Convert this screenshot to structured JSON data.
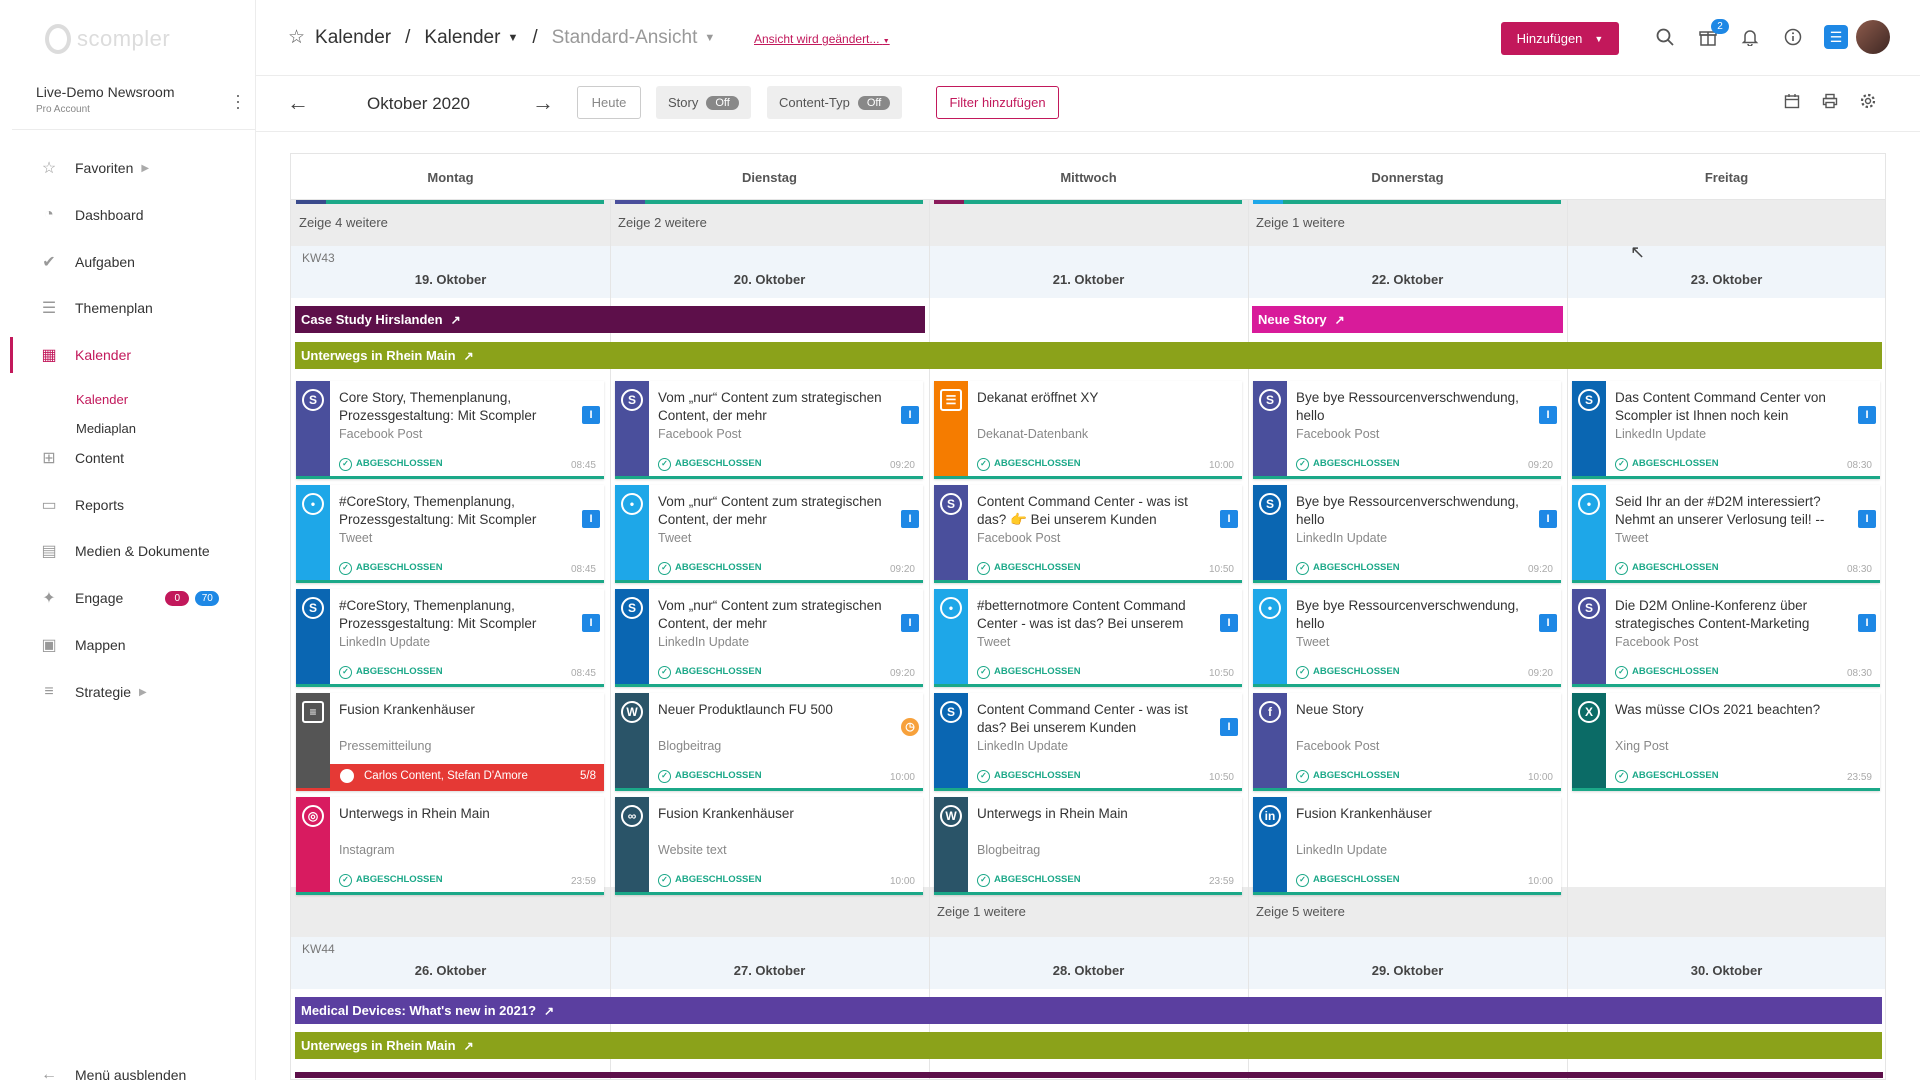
{
  "app": {
    "logo_text": "scompler"
  },
  "colors": {
    "accent": "#c2185b",
    "success": "#1ba888",
    "info": "#1e88e5"
  },
  "account": {
    "name": "Live-Demo Newsroom",
    "subtitle": "Pro Account"
  },
  "nav": {
    "items": [
      {
        "id": "favoriten",
        "label": "Favoriten",
        "icon": "star-icon",
        "has_chevron": true
      },
      {
        "id": "dashboard",
        "label": "Dashboard",
        "icon": "dashboard-icon"
      },
      {
        "id": "aufgaben",
        "label": "Aufgaben",
        "icon": "check-circle-icon"
      },
      {
        "id": "themenplan",
        "label": "Themenplan",
        "icon": "document-icon"
      },
      {
        "id": "kalender",
        "label": "Kalender",
        "icon": "calendar-icon",
        "active": true
      },
      {
        "id": "content",
        "label": "Content",
        "icon": "grid-icon"
      },
      {
        "id": "reports",
        "label": "Reports",
        "icon": "monitor-icon"
      },
      {
        "id": "medien",
        "label": "Medien & Dokumente",
        "icon": "archive-icon"
      },
      {
        "id": "engage",
        "label": "Engage",
        "icon": "network-icon",
        "badges": [
          "0",
          "70"
        ]
      },
      {
        "id": "mappen",
        "label": "Mappen",
        "icon": "briefcase-icon"
      },
      {
        "id": "strategie",
        "label": "Strategie",
        "icon": "sliders-icon",
        "has_chevron": true
      }
    ],
    "subitems": [
      {
        "label": "Kalender",
        "active": true
      },
      {
        "label": "Mediaplan"
      }
    ],
    "hide_menu": "Menü ausblenden"
  },
  "header": {
    "crumb1": "Kalender",
    "crumb2": "Kalender",
    "crumb3": "Standard-Ansicht",
    "sep": "/",
    "view_changed": "Ansicht wird geändert...",
    "add_button": "Hinzufügen",
    "notification_count": "2"
  },
  "controls": {
    "month": "Oktober 2020",
    "today": "Heute",
    "story_label": "Story",
    "story_value": "Off",
    "content_type_label": "Content-Typ",
    "content_type_value": "Off",
    "add_filter": "Filter hinzufügen"
  },
  "days": [
    "Montag",
    "Dienstag",
    "Mittwoch",
    "Donnerstag",
    "Freitag"
  ],
  "top_more": [
    "Zeige 4 weitere",
    "Zeige 2 weitere",
    "",
    "Zeige 1 weitere",
    ""
  ],
  "week43": {
    "kw": "KW43",
    "dates": [
      "19. Oktober",
      "20. Oktober",
      "21. Oktober",
      "22. Oktober",
      "23. Oktober"
    ],
    "bars": [
      {
        "label": "Case Study Hirslanden",
        "color": "#5d0f4a",
        "col": 0,
        "span": 2,
        "row": 0
      },
      {
        "label": "Neue Story",
        "color": "#d81b9a",
        "col": 3,
        "span": 1,
        "row": 0
      },
      {
        "label": "Unterwegs in Rhein Main",
        "color": "#8ba21a",
        "col": 0,
        "span": 5,
        "row": 1
      }
    ],
    "cards": [
      [
        {
          "title": "Core Story, Themenplanung, Prozessgestaltung: Mit Scompler",
          "type": "Facebook Post",
          "status": "ABGESCHLOSSEN",
          "time": "08:45",
          "color": "#4a4f9c",
          "icon": "scompler-icon",
          "flag": "I"
        },
        {
          "title": "#CoreStory, Themenplanung, Prozessgestaltung: Mit Scompler",
          "type": "Tweet",
          "status": "ABGESCHLOSSEN",
          "time": "08:45",
          "color": "#1ea7e8",
          "icon": "twitter-icon",
          "flag": "I"
        },
        {
          "title": "#CoreStory, Themenplanung, Prozessgestaltung: Mit Scompler",
          "type": "LinkedIn Update",
          "status": "ABGESCHLOSSEN",
          "time": "08:45",
          "color": "#0a66b2",
          "icon": "scompler-icon",
          "flag": "I"
        },
        {
          "title": "Fusion Krankenhäuser",
          "type": "Pressemitteilung",
          "status": "",
          "time": "",
          "color": "#555555",
          "icon": "newspaper-icon",
          "assign": "Carlos Content, Stefan D'Amore",
          "assign_count": "5/8"
        },
        {
          "title": "Unterwegs in Rhein Main",
          "type": "Instagram",
          "status": "ABGESCHLOSSEN",
          "time": "23:59",
          "color": "#d81b60",
          "icon": "instagram-icon"
        }
      ],
      [
        {
          "title": "Vom „nur“ Content zum strategischen Content, der mehr",
          "type": "Facebook Post",
          "status": "ABGESCHLOSSEN",
          "time": "09:20",
          "color": "#4a4f9c",
          "icon": "scompler-icon",
          "flag": "I"
        },
        {
          "title": "Vom „nur“ Content zum strategischen Content, der mehr",
          "type": "Tweet",
          "status": "ABGESCHLOSSEN",
          "time": "09:20",
          "color": "#1ea7e8",
          "icon": "twitter-icon",
          "flag": "I"
        },
        {
          "title": "Vom „nur“ Content zum strategischen Content, der mehr",
          "type": "LinkedIn Update",
          "status": "ABGESCHLOSSEN",
          "time": "09:20",
          "color": "#0a66b2",
          "icon": "scompler-icon",
          "flag": "I"
        },
        {
          "title": "Neuer Produktlaunch FU 500",
          "type": "Blogbeitrag",
          "status": "ABGESCHLOSSEN",
          "time": "10:00",
          "color": "#2a5468",
          "icon": "wordpress-icon",
          "flag": "clock"
        },
        {
          "title": "Fusion Krankenhäuser",
          "type": "Website text",
          "status": "ABGESCHLOSSEN",
          "time": "10:00",
          "color": "#2a5468",
          "icon": "link-icon"
        }
      ],
      [
        {
          "title": "Dekanat eröffnet XY",
          "type": "Dekanat-Datenbank",
          "status": "ABGESCHLOSSEN",
          "time": "10:00",
          "color": "#f57c00",
          "icon": "document-icon"
        },
        {
          "title": "Content Command Center - was ist das? 👉 Bei unserem Kunden",
          "type": "Facebook Post",
          "status": "ABGESCHLOSSEN",
          "time": "10:50",
          "color": "#4a4f9c",
          "icon": "scompler-icon",
          "flag": "I"
        },
        {
          "title": "#betternotmore Content Command Center - was ist das? Bei unserem",
          "type": "Tweet",
          "status": "ABGESCHLOSSEN",
          "time": "10:50",
          "color": "#1ea7e8",
          "icon": "twitter-icon",
          "flag": "I"
        },
        {
          "title": "Content Command Center - was ist das? Bei unserem Kunden",
          "type": "LinkedIn Update",
          "status": "ABGESCHLOSSEN",
          "time": "10:50",
          "color": "#0a66b2",
          "icon": "scompler-icon",
          "flag": "I"
        },
        {
          "title": "Unterwegs in Rhein Main",
          "type": "Blogbeitrag",
          "status": "ABGESCHLOSSEN",
          "time": "23:59",
          "color": "#2a5468",
          "icon": "wordpress-icon"
        }
      ],
      [
        {
          "title": "Bye bye Ressourcenverschwendung, hello",
          "type": "Facebook Post",
          "status": "ABGESCHLOSSEN",
          "time": "09:20",
          "color": "#4a4f9c",
          "icon": "scompler-icon",
          "flag": "I"
        },
        {
          "title": "Bye bye Ressourcenverschwendung, hello",
          "type": "LinkedIn Update",
          "status": "ABGESCHLOSSEN",
          "time": "09:20",
          "color": "#0a66b2",
          "icon": "scompler-icon",
          "flag": "I"
        },
        {
          "title": "Bye bye Ressourcenverschwendung, hello",
          "type": "Tweet",
          "status": "ABGESCHLOSSEN",
          "time": "09:20",
          "color": "#1ea7e8",
          "icon": "twitter-icon",
          "flag": "I"
        },
        {
          "title": "Neue Story",
          "type": "Facebook Post",
          "status": "ABGESCHLOSSEN",
          "time": "10:00",
          "color": "#4a4f9c",
          "icon": "facebook-icon"
        },
        {
          "title": "Fusion Krankenhäuser",
          "type": "LinkedIn Update",
          "status": "ABGESCHLOSSEN",
          "time": "10:00",
          "color": "#0a66b2",
          "icon": "linkedin-icon"
        }
      ],
      [
        {
          "title": "Das Content Command Center von Scompler ist Ihnen noch kein",
          "type": "LinkedIn Update",
          "status": "ABGESCHLOSSEN",
          "time": "08:30",
          "color": "#0a66b2",
          "icon": "scompler-icon",
          "flag": "I"
        },
        {
          "title": "Seid Ihr an der #D2M interessiert? Nehmt an unserer Verlosung teil! --",
          "type": "Tweet",
          "status": "ABGESCHLOSSEN",
          "time": "08:30",
          "color": "#1ea7e8",
          "icon": "twitter-icon",
          "flag": "I"
        },
        {
          "title": "Die D2M Online-Konferenz über strategisches Content-Marketing",
          "type": "Facebook Post",
          "status": "ABGESCHLOSSEN",
          "time": "08:30",
          "color": "#4a4f9c",
          "icon": "scompler-icon",
          "flag": "I"
        },
        {
          "title": "Was müsse CIOs 2021 beachten?",
          "type": "Xing Post",
          "status": "ABGESCHLOSSEN",
          "time": "23:59",
          "color": "#0b6b66",
          "icon": "xing-icon"
        }
      ]
    ],
    "more": [
      "",
      "",
      "Zeige 1 weitere",
      "Zeige 5 weitere",
      ""
    ]
  },
  "week44": {
    "kw": "KW44",
    "dates": [
      "26. Oktober",
      "27. Oktober",
      "28. Oktober",
      "29. Oktober",
      "30. Oktober"
    ],
    "bars": [
      {
        "label": "Medical Devices: What's new in 2021?",
        "color": "#5b3fa0",
        "col": 0,
        "span": 5,
        "row": 0
      },
      {
        "label": "Unterwegs in Rhein Main",
        "color": "#8ba21a",
        "col": 0,
        "span": 5,
        "row": 1
      }
    ]
  }
}
